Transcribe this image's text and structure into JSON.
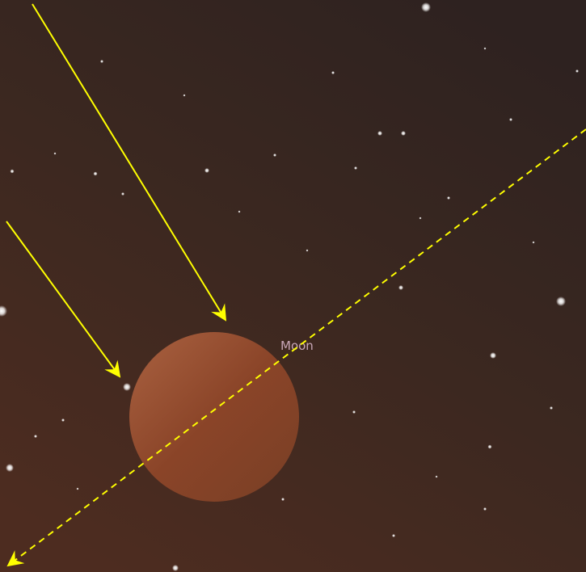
{
  "labels": {
    "moon": "Moon"
  }
}
